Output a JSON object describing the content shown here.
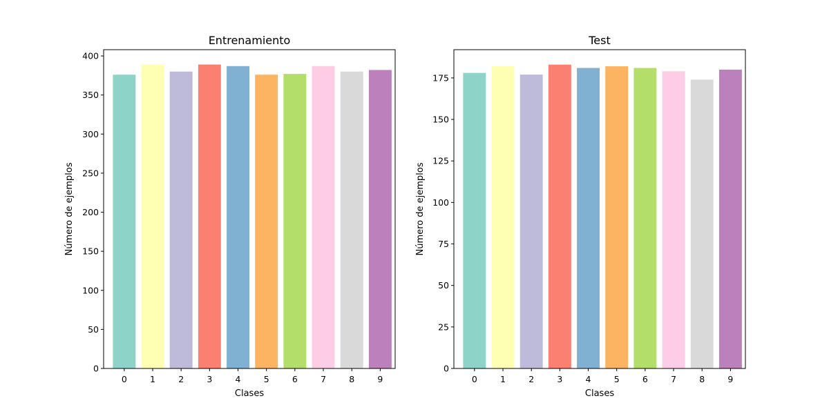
{
  "chart_data": [
    {
      "type": "bar",
      "title": "Entrenamiento",
      "xlabel": "Clases",
      "ylabel": "Número de ejemplos",
      "categories": [
        "0",
        "1",
        "2",
        "3",
        "4",
        "5",
        "6",
        "7",
        "8",
        "9"
      ],
      "values": [
        376,
        389,
        380,
        389,
        387,
        376,
        377,
        387,
        380,
        382
      ],
      "ylim": [
        0,
        408
      ],
      "yticks": [
        0,
        50,
        100,
        150,
        200,
        250,
        300,
        350,
        400
      ],
      "grid": false,
      "legend": "none"
    },
    {
      "type": "bar",
      "title": "Test",
      "xlabel": "Clases",
      "ylabel": "Número de ejemplos",
      "categories": [
        "0",
        "1",
        "2",
        "3",
        "4",
        "5",
        "6",
        "7",
        "8",
        "9"
      ],
      "values": [
        178,
        182,
        177,
        183,
        181,
        182,
        181,
        179,
        174,
        180
      ],
      "ylim": [
        0,
        192
      ],
      "yticks": [
        0,
        25,
        50,
        75,
        100,
        125,
        150,
        175
      ],
      "grid": false,
      "legend": "none"
    }
  ],
  "colors": [
    "#8dd3c7",
    "#ffffb3",
    "#bebada",
    "#fb8072",
    "#80b1d3",
    "#fdb462",
    "#b3de69",
    "#fccde5",
    "#d9d9d9",
    "#bc80bd"
  ]
}
